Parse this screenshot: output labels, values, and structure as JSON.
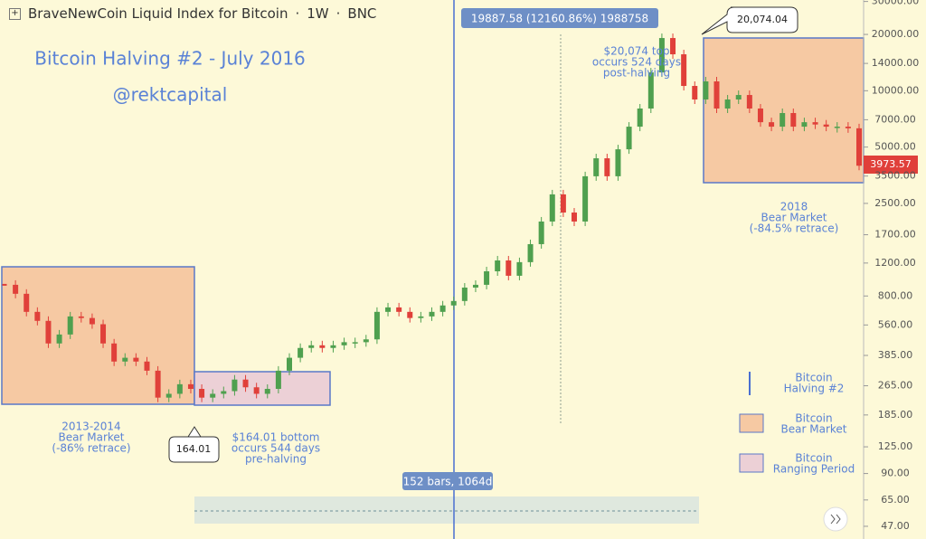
{
  "header": {
    "symbol": "BraveNewCoin Liquid Index for Bitcoin",
    "interval": "1W",
    "exchange": "BNC"
  },
  "chart_data": {
    "type": "candlestick",
    "title": "Bitcoin Halving #2 - July 2016",
    "subtitle": "@rektcapital",
    "log_scale": true,
    "up_color": "#4fa04f",
    "down_color": "#e0403a",
    "ylim": [
      40.2,
      30550
    ],
    "yticks": [
      {
        "value": 30000,
        "label": "30000.00"
      },
      {
        "value": 20000,
        "label": "20000.00"
      },
      {
        "value": 14000,
        "label": "14000.00"
      },
      {
        "value": 10000,
        "label": "10000.00"
      },
      {
        "value": 7000,
        "label": "7000.00"
      },
      {
        "value": 5000,
        "label": "5000.00"
      },
      {
        "value": 3500,
        "label": "3500.00"
      },
      {
        "value": 2500,
        "label": "2500.00"
      },
      {
        "value": 1700,
        "label": "1700.00"
      },
      {
        "value": 1200,
        "label": "1200.00"
      },
      {
        "value": 800,
        "label": "800.00"
      },
      {
        "value": 560,
        "label": "560.00"
      },
      {
        "value": 385,
        "label": "385.00"
      },
      {
        "value": 265,
        "label": "265.00"
      },
      {
        "value": 185,
        "label": "185.00"
      },
      {
        "value": 125,
        "label": "125.00"
      },
      {
        "value": 90,
        "label": "90.00"
      },
      {
        "value": 65,
        "label": "65.00"
      },
      {
        "value": 47,
        "label": "47.00"
      }
    ],
    "values": [
      918,
      822,
      658,
      589,
      446,
      498,
      622,
      610,
      565,
      446,
      357,
      374,
      357,
      319,
      229,
      240,
      270,
      255,
      229,
      240,
      248,
      286,
      260,
      240,
      255,
      319,
      374,
      422,
      436,
      422,
      436,
      453,
      453,
      469,
      658,
      695,
      658,
      610,
      622,
      658,
      712,
      752,
      887,
      918,
      1084,
      1239,
      1026,
      1213,
      1514,
      2000,
      2793,
      2234,
      2000,
      3491,
      4355,
      3491,
      4864,
      6427,
      8035,
      12530,
      19130,
      15660,
      10610,
      8980,
      11220,
      8035,
      8980,
      9490,
      8035,
      6790,
      6427,
      7600,
      6427,
      6790,
      6600,
      6427,
      6427,
      6300,
      3973.57
    ],
    "annotations": {
      "measure": "19887.58 (12160.86%) 1988758",
      "bars": "152 bars, 1064d",
      "top_callout": "20,074.04",
      "bottom_callout": "164.01",
      "top_note": [
        "$20,074 top",
        "occurs 524 days",
        "post-halving"
      ],
      "bottom_note": [
        "$164.01 bottom",
        "occurs 544 days",
        "pre-halving"
      ],
      "bear_2014": [
        "2013-2014",
        "Bear Market",
        "(-86% retrace)"
      ],
      "bear_2018": [
        "2018",
        "Bear Market",
        "(-84.5% retrace)"
      ]
    },
    "legend": [
      {
        "name": [
          "Bitcoin",
          "Halving #2"
        ]
      },
      {
        "name": [
          "Bitcoin",
          "Bear Market"
        ]
      },
      {
        "name": [
          "Bitcoin",
          "Ranging Period"
        ]
      }
    ]
  }
}
